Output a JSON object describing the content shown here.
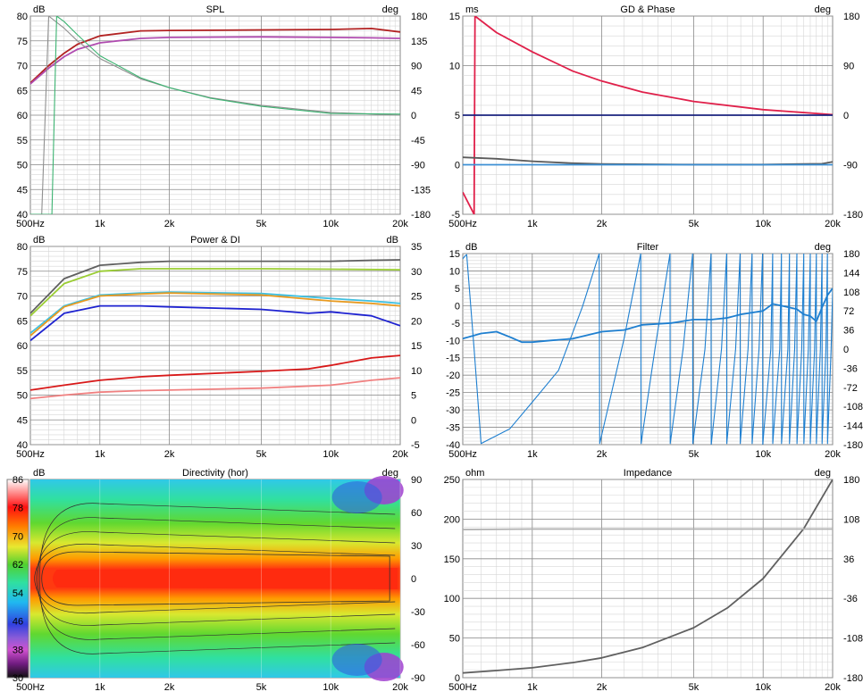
{
  "chart_data": [
    {
      "id": "spl",
      "type": "line",
      "title": "SPL",
      "y_unit": "dB",
      "y2_unit": "deg",
      "x_scale": "log",
      "xlim": [
        500,
        20000
      ],
      "x_tick_labels": [
        "500Hz",
        "1k",
        "2k",
        "5k",
        "10k",
        "20k"
      ],
      "ylim": [
        40,
        80
      ],
      "y_tick_labels": [
        "40",
        "45",
        "50",
        "55",
        "60",
        "65",
        "70",
        "75",
        "80"
      ],
      "y2lim": [
        -180,
        180
      ],
      "y2_tick_labels": [
        "-180",
        "-135",
        "-90",
        "-45",
        "0",
        "45",
        "90",
        "135",
        "180"
      ],
      "grid": true,
      "series": [
        {
          "color": "#b22222",
          "axis": "left",
          "x": [
            500,
            600,
            700,
            800,
            1000,
            1500,
            2000,
            5000,
            10000,
            15000,
            20000
          ],
          "y": [
            66.5,
            70,
            72.5,
            74.3,
            76,
            77,
            77.1,
            77.2,
            77.3,
            77.5,
            76.8
          ]
        },
        {
          "color": "#b04cb0",
          "axis": "left",
          "x": [
            500,
            600,
            700,
            800,
            1000,
            1500,
            2000,
            5000,
            10000,
            15000,
            20000
          ],
          "y": [
            66.3,
            69.5,
            71.8,
            73.3,
            74.6,
            75.5,
            75.7,
            75.8,
            75.7,
            75.6,
            75.5
          ]
        },
        {
          "color": "#909090",
          "axis": "right",
          "x": [
            500,
            560,
            600,
            700,
            800,
            1000,
            1500,
            2000,
            3000,
            5000,
            10000,
            20000
          ],
          "y": [
            -180,
            -180,
            180,
            158,
            135,
            103,
            66,
            50,
            32,
            18,
            5,
            0
          ]
        },
        {
          "color": "#3cb371",
          "axis": "right",
          "x": [
            500,
            620,
            650,
            700,
            800,
            1000,
            1500,
            2000,
            3000,
            5000,
            10000,
            20000
          ],
          "y": [
            -180,
            -180,
            180,
            170,
            146,
            108,
            68,
            50,
            31,
            16,
            3,
            2
          ]
        }
      ]
    },
    {
      "id": "gd-phase",
      "type": "line",
      "title": "GD & Phase",
      "y_unit": "ms",
      "y2_unit": "deg",
      "x_scale": "log",
      "xlim": [
        500,
        20000
      ],
      "x_tick_labels": [
        "500Hz",
        "1k",
        "2k",
        "5k",
        "10k",
        "20k"
      ],
      "ylim": [
        -5,
        15
      ],
      "y_tick_labels": [
        "-5",
        "0",
        "5",
        "10",
        "15"
      ],
      "y2lim": [
        -180,
        180
      ],
      "y2_tick_labels": [
        "-180",
        "-90",
        "0",
        "90",
        "180"
      ],
      "grid": true,
      "series": [
        {
          "color": "#e0204a",
          "axis": "right",
          "x": [
            500,
            560,
            565,
            700,
            1000,
            1500,
            2000,
            3000,
            5000,
            10000,
            20000
          ],
          "y": [
            -140,
            -180,
            180,
            150,
            115,
            80,
            62,
            42,
            25,
            10,
            1
          ]
        },
        {
          "color": "#1a237e",
          "axis": "left",
          "x": [
            500,
            20000
          ],
          "y": [
            5,
            5
          ]
        },
        {
          "color": "#5a5a5a",
          "axis": "left",
          "x": [
            500,
            700,
            1000,
            1500,
            2000,
            5000,
            10000,
            18000,
            20000
          ],
          "y": [
            0.75,
            0.6,
            0.35,
            0.15,
            0.07,
            0.02,
            0.02,
            0.1,
            0.3
          ]
        },
        {
          "color": "#3b8fd4",
          "axis": "left",
          "x": [
            500,
            20000
          ],
          "y": [
            0,
            0
          ]
        }
      ]
    },
    {
      "id": "power-di",
      "type": "line",
      "title": "Power & DI",
      "y_unit": "dB",
      "y2_unit": "dB",
      "x_scale": "log",
      "xlim": [
        500,
        20000
      ],
      "x_tick_labels": [
        "500Hz",
        "1k",
        "2k",
        "5k",
        "10k",
        "20k"
      ],
      "ylim": [
        40,
        80
      ],
      "y_tick_labels": [
        "40",
        "45",
        "50",
        "55",
        "60",
        "65",
        "70",
        "75",
        "80"
      ],
      "y2lim": [
        -5,
        35
      ],
      "y2_tick_labels": [
        "-5",
        "0",
        "5",
        "10",
        "15",
        "20",
        "25",
        "30",
        "35"
      ],
      "grid": true,
      "series": [
        {
          "color": "#606060",
          "axis": "left",
          "x": [
            500,
            700,
            1000,
            1500,
            2000,
            5000,
            10000,
            15000,
            20000
          ],
          "y": [
            66.5,
            73.5,
            76.2,
            76.8,
            77,
            77,
            77,
            77.2,
            77.3
          ]
        },
        {
          "color": "#9acd32",
          "axis": "left",
          "x": [
            500,
            700,
            1000,
            1500,
            2000,
            5000,
            10000,
            20000
          ],
          "y": [
            66,
            72.5,
            75,
            75.5,
            75.5,
            75.5,
            75.4,
            75.3
          ]
        },
        {
          "color": "#40c0e0",
          "axis": "left",
          "x": [
            500,
            700,
            1000,
            1500,
            2000,
            5000,
            10000,
            15000,
            20000
          ],
          "y": [
            62.5,
            68,
            70.2,
            70.6,
            70.8,
            70.5,
            69.5,
            69,
            68.5
          ]
        },
        {
          "color": "#e89a20",
          "axis": "left",
          "x": [
            500,
            700,
            1000,
            1500,
            2000,
            5000,
            10000,
            15000,
            20000
          ],
          "y": [
            62,
            67.8,
            70,
            70.4,
            70.6,
            70.2,
            69,
            68.5,
            68
          ]
        },
        {
          "color": "#1e22d0",
          "axis": "left",
          "x": [
            500,
            700,
            1000,
            1500,
            2000,
            5000,
            8000,
            10000,
            15000,
            20000
          ],
          "y": [
            61,
            66.5,
            68,
            68,
            67.8,
            67.3,
            66.5,
            66.8,
            66,
            64
          ]
        },
        {
          "color": "#d81818",
          "axis": "right",
          "x": [
            500,
            700,
            1000,
            1500,
            2000,
            5000,
            8000,
            10000,
            15000,
            20000
          ],
          "y": [
            6,
            7,
            8,
            8.7,
            9,
            9.8,
            10.3,
            11,
            12.5,
            13
          ]
        },
        {
          "color": "#f08080",
          "axis": "right",
          "x": [
            500,
            700,
            1000,
            1500,
            2000,
            5000,
            10000,
            15000,
            20000
          ],
          "y": [
            4.3,
            5,
            5.6,
            5.9,
            6,
            6.4,
            7,
            8,
            8.5
          ]
        }
      ]
    },
    {
      "id": "filter",
      "type": "line",
      "title": "Filter",
      "y_unit": "dB",
      "y2_unit": "deg",
      "x_scale": "log",
      "xlim": [
        500,
        20000
      ],
      "x_tick_labels": [
        "500Hz",
        "1k",
        "2k",
        "5k",
        "10k",
        "20k"
      ],
      "ylim": [
        -40,
        15
      ],
      "y_tick_labels": [
        "-40",
        "-35",
        "-30",
        "-25",
        "-20",
        "-15",
        "-10",
        "-5",
        "0",
        "5",
        "10",
        "15"
      ],
      "y2lim": [
        -180,
        180
      ],
      "y2_tick_labels": [
        "-180",
        "-144",
        "-108",
        "-72",
        "-36",
        "0",
        "36",
        "72",
        "108",
        "144",
        "180"
      ],
      "grid": true,
      "series": [
        {
          "color": "#1e7fd0",
          "axis": "left",
          "x": [
            500,
            600,
            700,
            800,
            900,
            1000,
            1200,
            1500,
            2000,
            2500,
            3000,
            4000,
            5000,
            6000,
            7000,
            8000,
            10000,
            11000,
            12000,
            14000,
            15000,
            16000,
            17000,
            18000,
            19000,
            20000
          ],
          "y": [
            -9.5,
            -8,
            -7.5,
            -9,
            -10.5,
            -10.5,
            -10,
            -9.5,
            -7.5,
            -7,
            -5.5,
            -5,
            -4,
            -4,
            -3.5,
            -2.5,
            -1.5,
            0.5,
            0,
            -1,
            -2.5,
            -3,
            -4.5,
            -0.5,
            3,
            5
          ]
        },
        {
          "color": "#1e7fd0",
          "axis": "right",
          "x": [
            500,
            510,
            520,
            560,
            600,
            800,
            1000,
            1300,
            1650,
            1950,
            1960,
            2500,
            2950,
            2960,
            3400,
            3950,
            3960,
            4500,
            4950,
            4960,
            5600,
            5950,
            5960,
            6600,
            6950,
            6960,
            7600,
            7950,
            7960,
            8600,
            8950,
            8960,
            9600,
            9950,
            9960,
            10800,
            11000,
            11010,
            11800,
            12000,
            12010,
            12800,
            13000,
            13010,
            13700,
            14000,
            14010,
            14700,
            15000,
            15010,
            15700,
            16000,
            16010,
            16700,
            17000,
            17010,
            17700,
            18000,
            18010,
            18700,
            19000,
            19010,
            19700,
            20000
          ],
          "y": [
            170,
            175,
            178,
            0,
            -178,
            -150,
            -100,
            -40,
            80,
            180,
            -178,
            20,
            180,
            -178,
            0,
            180,
            -178,
            0,
            180,
            -178,
            0,
            180,
            -180,
            0,
            180,
            -178,
            0,
            180,
            -178,
            0,
            180,
            -178,
            0,
            180,
            -180,
            0,
            180,
            -178,
            0,
            180,
            -178,
            0,
            180,
            -178,
            0,
            180,
            -178,
            0,
            180,
            -178,
            0,
            180,
            -178,
            0,
            180,
            -178,
            0,
            180,
            -178,
            0,
            180,
            -178,
            0,
            110
          ]
        }
      ]
    },
    {
      "id": "directivity",
      "type": "heatmap",
      "title": "Directivity (hor)",
      "y_unit": "deg",
      "x_scale": "log",
      "xlim": [
        500,
        20000
      ],
      "x_tick_labels": [
        "500Hz",
        "1k",
        "2k",
        "5k",
        "10k",
        "20k"
      ],
      "ylim": [
        -90,
        90
      ],
      "y_tick_labels": [
        "-90",
        "-60",
        "-30",
        "0",
        "30",
        "60",
        "90"
      ],
      "color_unit": "dB",
      "color_range": [
        30,
        86
      ],
      "color_tick_labels": [
        "30",
        "38",
        "46",
        "54",
        "62",
        "70",
        "78",
        "86"
      ],
      "colorscale": [
        "#1a1a1a",
        "#8c2fa0",
        "#d050d0",
        "#3040e0",
        "#20b8f0",
        "#30e0a0",
        "#50d030",
        "#e8e830",
        "#ff8000",
        "#ff1010",
        "#ffffff"
      ]
    },
    {
      "id": "impedance",
      "type": "line",
      "title": "Impedance",
      "y_unit": "ohm",
      "y2_unit": "deg",
      "x_scale": "log",
      "xlim": [
        500,
        20000
      ],
      "x_tick_labels": [
        "500Hz",
        "1k",
        "2k",
        "5k",
        "10k",
        "20k"
      ],
      "ylim": [
        0,
        250
      ],
      "y_tick_labels": [
        "0",
        "50",
        "100",
        "150",
        "200",
        "250"
      ],
      "y2lim": [
        -180,
        180
      ],
      "y2_tick_labels": [
        "-180",
        "-108",
        "-36",
        "36",
        "108",
        "180"
      ],
      "grid": true,
      "series": [
        {
          "color": "#606060",
          "axis": "left",
          "x": [
            500,
            700,
            1000,
            1500,
            2000,
            3000,
            5000,
            7000,
            10000,
            15000,
            20000
          ],
          "y": [
            6,
            9,
            12.5,
            19,
            25,
            38,
            63,
            88,
            125,
            188,
            250
          ]
        },
        {
          "color": "#b0b0b0",
          "axis": "right",
          "x": [
            500,
            1000,
            2000,
            5000,
            10000,
            20000
          ],
          "y": [
            89,
            90,
            90,
            90,
            90,
            90
          ]
        }
      ]
    }
  ]
}
